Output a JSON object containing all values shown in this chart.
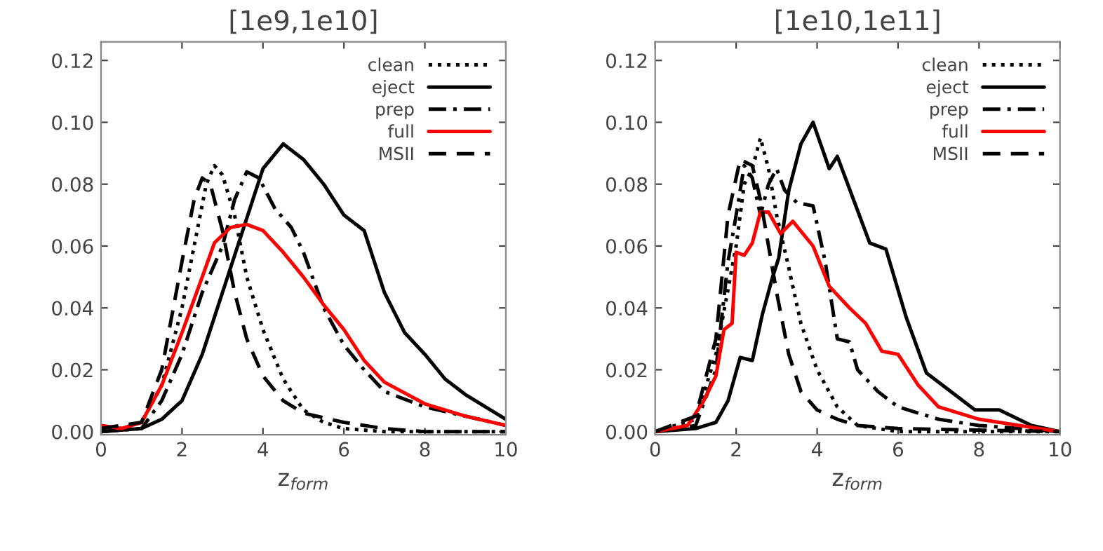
{
  "chart_data": [
    {
      "type": "line",
      "title": "[1e9,1e10]",
      "xlabel": "z$_{form}$",
      "xlim": [
        0,
        10
      ],
      "ylim": [
        -0.001,
        0.126
      ],
      "xticks": [
        0,
        2,
        4,
        6,
        8,
        10
      ],
      "yticks": [
        {
          "value": 0,
          "label": "0.00"
        },
        {
          "value": 0.02,
          "label": "0.02"
        },
        {
          "value": 0.04,
          "label": "0.04"
        },
        {
          "value": 0.06,
          "label": "0.06"
        },
        {
          "value": 0.08,
          "label": "0.08"
        },
        {
          "value": 0.1,
          "label": "0.10"
        },
        {
          "value": 0.12,
          "label": "0.12"
        }
      ],
      "grid": false,
      "legend": "top right",
      "series": [
        {
          "name": "clean",
          "color": "#000000",
          "line_style": "dotted",
          "x": [
            0,
            0.5,
            1,
            1.5,
            2,
            2.3,
            2.6,
            2.8,
            3.0,
            3.3,
            3.6,
            4,
            4.5,
            5,
            5.5,
            6,
            7,
            10
          ],
          "values": [
            0.002,
            0.001,
            0.003,
            0.015,
            0.04,
            0.06,
            0.08,
            0.086,
            0.083,
            0.07,
            0.05,
            0.033,
            0.017,
            0.007,
            0.003,
            0.001,
            0.0,
            0.0
          ]
        },
        {
          "name": "eject",
          "color": "#000000",
          "line_style": "solid",
          "x": [
            0,
            1,
            1.5,
            2,
            2.5,
            3,
            3.5,
            4,
            4.5,
            5,
            5.5,
            6,
            6.5,
            7,
            7.5,
            8,
            8.5,
            9,
            10
          ],
          "values": [
            0.0,
            0.001,
            0.004,
            0.01,
            0.025,
            0.045,
            0.065,
            0.085,
            0.093,
            0.088,
            0.08,
            0.07,
            0.065,
            0.045,
            0.032,
            0.025,
            0.017,
            0.012,
            0.004
          ]
        },
        {
          "name": "prep",
          "color": "#000000",
          "line_style": "dashdot",
          "x": [
            0,
            1,
            1.5,
            2,
            2.5,
            3,
            3.3,
            3.6,
            3.9,
            4.3,
            4.7,
            5,
            5.5,
            6,
            6.5,
            7,
            8,
            9,
            10
          ],
          "values": [
            0.0,
            0.001,
            0.01,
            0.025,
            0.045,
            0.06,
            0.075,
            0.084,
            0.082,
            0.072,
            0.066,
            0.058,
            0.04,
            0.028,
            0.02,
            0.013,
            0.008,
            0.005,
            0.002
          ]
        },
        {
          "name": "full",
          "color": "#ff0000",
          "line_style": "solid",
          "x": [
            0,
            0.5,
            1,
            1.5,
            2,
            2.5,
            2.8,
            3.2,
            3.6,
            4,
            4.5,
            5,
            5.5,
            6,
            6.5,
            7,
            8,
            9,
            10
          ],
          "values": [
            0.002,
            0.001,
            0.003,
            0.015,
            0.032,
            0.05,
            0.061,
            0.066,
            0.067,
            0.065,
            0.058,
            0.05,
            0.041,
            0.033,
            0.023,
            0.016,
            0.009,
            0.005,
            0.002
          ]
        },
        {
          "name": "MSII",
          "color": "#000000",
          "line_style": "dashed",
          "x": [
            0,
            1,
            1.5,
            2,
            2.3,
            2.5,
            2.7,
            3.0,
            3.3,
            3.6,
            4,
            4.5,
            5,
            6,
            7,
            8,
            10
          ],
          "values": [
            0.001,
            0.003,
            0.02,
            0.055,
            0.075,
            0.082,
            0.08,
            0.065,
            0.045,
            0.03,
            0.018,
            0.01,
            0.006,
            0.003,
            0.001,
            0.0,
            0.0
          ]
        }
      ]
    },
    {
      "type": "line",
      "title": "[1e10,1e11]",
      "xlabel": "z$_{form}$",
      "xlim": [
        0,
        10
      ],
      "ylim": [
        -0.001,
        0.126
      ],
      "xticks": [
        0,
        2,
        4,
        6,
        8,
        10
      ],
      "yticks": [
        {
          "value": 0,
          "label": "0.00"
        },
        {
          "value": 0.02,
          "label": "0.02"
        },
        {
          "value": 0.04,
          "label": "0.04"
        },
        {
          "value": 0.06,
          "label": "0.06"
        },
        {
          "value": 0.08,
          "label": "0.08"
        },
        {
          "value": 0.1,
          "label": "0.10"
        },
        {
          "value": 0.12,
          "label": "0.12"
        }
      ],
      "grid": false,
      "legend": "top right",
      "series": [
        {
          "name": "clean",
          "color": "#000000",
          "line_style": "dotted",
          "x": [
            0,
            1,
            1.5,
            2,
            2.2,
            2.4,
            2.6,
            2.8,
            3.0,
            3.3,
            3.6,
            4,
            4.5,
            5,
            6,
            10
          ],
          "values": [
            0.0,
            0.004,
            0.025,
            0.06,
            0.08,
            0.085,
            0.095,
            0.085,
            0.07,
            0.053,
            0.035,
            0.02,
            0.008,
            0.002,
            0.0,
            0.0
          ]
        },
        {
          "name": "eject",
          "color": "#000000",
          "line_style": "solid",
          "x": [
            0,
            1,
            1.5,
            1.8,
            2.1,
            2.4,
            2.65,
            2.9,
            3.05,
            3.3,
            3.6,
            3.9,
            4.3,
            4.5,
            5.3,
            5.7,
            6.2,
            6.7,
            7.9,
            8.5,
            9.3,
            10
          ],
          "values": [
            0.0,
            0.001,
            0.003,
            0.01,
            0.024,
            0.023,
            0.038,
            0.05,
            0.056,
            0.078,
            0.093,
            0.1,
            0.085,
            0.089,
            0.061,
            0.059,
            0.037,
            0.019,
            0.007,
            0.007,
            0.002,
            0.0
          ]
        },
        {
          "name": "prep",
          "color": "#000000",
          "line_style": "dashdot",
          "x": [
            0,
            1,
            1.5,
            1.8,
            2.0,
            2.2,
            2.4,
            2.6,
            2.8,
            3.0,
            3.2,
            3.5,
            3.9,
            4.2,
            4.5,
            4.8,
            5,
            5.5,
            6,
            7,
            8,
            10
          ],
          "values": [
            0.0,
            0.002,
            0.02,
            0.055,
            0.07,
            0.086,
            0.082,
            0.07,
            0.08,
            0.085,
            0.078,
            0.074,
            0.073,
            0.055,
            0.03,
            0.029,
            0.02,
            0.013,
            0.008,
            0.004,
            0.002,
            0.0
          ]
        },
        {
          "name": "full",
          "color": "#ff0000",
          "line_style": "solid",
          "x": [
            0,
            0.8,
            1,
            1.2,
            1.5,
            1.7,
            1.9,
            2.0,
            2.2,
            2.4,
            2.6,
            2.8,
            3.1,
            3.4,
            3.9,
            4.3,
            4.8,
            5.2,
            5.6,
            6,
            6.5,
            7,
            8,
            9,
            10
          ],
          "values": [
            0.0,
            0.002,
            0.006,
            0.01,
            0.018,
            0.033,
            0.035,
            0.058,
            0.057,
            0.061,
            0.071,
            0.071,
            0.064,
            0.068,
            0.06,
            0.047,
            0.04,
            0.035,
            0.026,
            0.025,
            0.015,
            0.008,
            0.004,
            0.002,
            0.0
          ]
        },
        {
          "name": "MSII",
          "color": "#000000",
          "line_style": "dashed",
          "x": [
            0,
            1,
            1.5,
            1.8,
            2.1,
            2.4,
            2.6,
            2.8,
            3.0,
            3.3,
            3.6,
            4,
            4.5,
            5,
            6,
            10
          ],
          "values": [
            0.0,
            0.005,
            0.03,
            0.07,
            0.088,
            0.086,
            0.075,
            0.06,
            0.045,
            0.025,
            0.013,
            0.007,
            0.004,
            0.002,
            0.001,
            0.0
          ]
        }
      ]
    }
  ]
}
